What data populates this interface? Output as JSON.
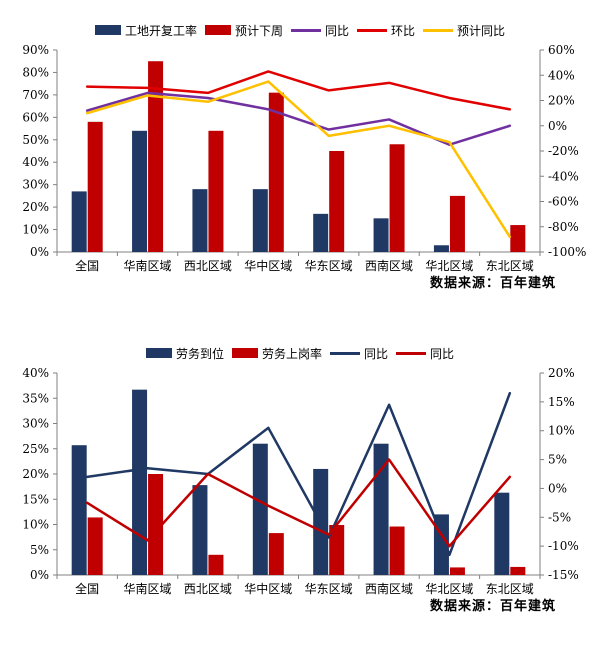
{
  "chart_data": [
    {
      "type": "bar+line",
      "title": "",
      "categories": [
        "全国",
        "华南区域",
        "西北区域",
        "华中区域",
        "华东区域",
        "西南区域",
        "华北区域",
        "东北区域"
      ],
      "left_axis": {
        "min": 0,
        "max": 90,
        "step": 10,
        "unit": "%"
      },
      "right_axis": {
        "min": -100,
        "max": 60,
        "step": 20,
        "unit": "%"
      },
      "grid": false,
      "legend_position": "top",
      "bar_series": [
        {
          "name": "工地开复工率",
          "color": "#1F3864",
          "axis": "left",
          "values": [
            27,
            54,
            28,
            28,
            17,
            15,
            3,
            0
          ]
        },
        {
          "name": "预计下周",
          "color": "#C00000",
          "axis": "left",
          "values": [
            58,
            85,
            54,
            71,
            45,
            48,
            25,
            12
          ]
        }
      ],
      "line_series": [
        {
          "name": "同比",
          "color": "#7030A0",
          "axis": "right",
          "values": [
            12,
            26,
            22,
            13,
            -3,
            5,
            -15,
            0
          ]
        },
        {
          "name": "环比",
          "color": "#E00000",
          "axis": "right",
          "values": [
            31,
            30,
            26,
            43,
            28,
            34,
            22,
            13
          ]
        },
        {
          "name": "预计同比",
          "color": "#FFC000",
          "axis": "right",
          "values": [
            10,
            24,
            19,
            35,
            -8,
            0,
            -13,
            -88
          ]
        }
      ],
      "source": "数据来源：百年建筑"
    },
    {
      "type": "bar+line",
      "title": "",
      "categories": [
        "全国",
        "华南区域",
        "西北区域",
        "华中区域",
        "华东区域",
        "西南区域",
        "华北区域",
        "东北区域"
      ],
      "left_axis": {
        "min": 0,
        "max": 40,
        "step": 5,
        "unit": "%"
      },
      "right_axis": {
        "min": -15,
        "max": 20,
        "step": 5,
        "unit": "%"
      },
      "grid": false,
      "legend_position": "top",
      "bar_series": [
        {
          "name": "劳务到位",
          "color": "#1F3864",
          "axis": "left",
          "values": [
            25.7,
            36.7,
            17.8,
            26,
            21,
            26,
            12,
            16.3
          ]
        },
        {
          "name": "劳务上岗率",
          "color": "#C00000",
          "axis": "left",
          "values": [
            11.4,
            20,
            4,
            8.3,
            9.9,
            9.6,
            1.5,
            1.6
          ]
        }
      ],
      "line_series": [
        {
          "name": "同比",
          "color": "#1F3864",
          "axis": "right",
          "values": [
            2,
            3.5,
            2.5,
            10.5,
            -8.5,
            14.5,
            -11.5,
            16.5
          ]
        },
        {
          "name": "同比",
          "color": "#C00000",
          "axis": "right",
          "values": [
            -2.5,
            -9,
            2.5,
            -3,
            -8,
            5,
            -10,
            2
          ]
        }
      ],
      "source": "数据来源：百年建筑"
    }
  ],
  "colors": {
    "navy": "#1F3864",
    "bar_red": "#C00000",
    "line_red": "#E00000",
    "purple": "#7030A0",
    "gold": "#FFC000",
    "axis_gray": "#808080"
  }
}
